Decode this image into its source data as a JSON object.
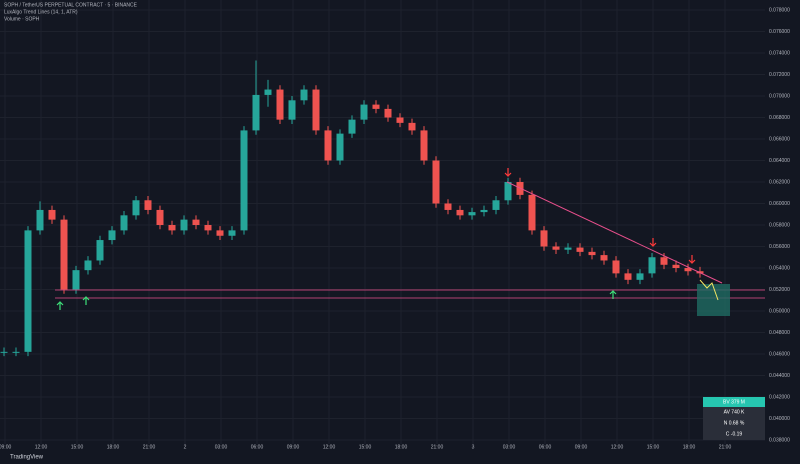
{
  "chart_data": {
    "type": "candlestick",
    "header": [
      "SOPH / TetherUS PERPETUAL CONTRACT · 5 · BINANCE",
      "LuxAlgo Trend Lines (14, 1, ATR)",
      "Volume · SOPH"
    ],
    "ohlc": [
      [
        0.0462,
        0.0466,
        0.0458,
        0.0462
      ],
      [
        0.0462,
        0.0466,
        0.0458,
        0.0462
      ],
      [
        0.0462,
        0.0579,
        0.0458,
        0.0575
      ],
      [
        0.0575,
        0.0602,
        0.0571,
        0.0594
      ],
      [
        0.0594,
        0.0598,
        0.0581,
        0.0585
      ],
      [
        0.0585,
        0.0589,
        0.0516,
        0.052
      ],
      [
        0.052,
        0.0542,
        0.0516,
        0.0538
      ],
      [
        0.0538,
        0.0551,
        0.0534,
        0.0547
      ],
      [
        0.0547,
        0.057,
        0.0543,
        0.0566
      ],
      [
        0.0566,
        0.0579,
        0.0562,
        0.0575
      ],
      [
        0.0575,
        0.0593,
        0.0571,
        0.0589
      ],
      [
        0.0589,
        0.0607,
        0.0585,
        0.0603
      ],
      [
        0.0603,
        0.0607,
        0.059,
        0.0594
      ],
      [
        0.0594,
        0.0598,
        0.0576,
        0.058
      ],
      [
        0.058,
        0.0584,
        0.0571,
        0.0575
      ],
      [
        0.0575,
        0.0589,
        0.0571,
        0.0585
      ],
      [
        0.0585,
        0.0589,
        0.0576,
        0.058
      ],
      [
        0.058,
        0.0584,
        0.0571,
        0.0575
      ],
      [
        0.0575,
        0.0579,
        0.0566,
        0.057
      ],
      [
        0.057,
        0.0579,
        0.0566,
        0.0575
      ],
      [
        0.0575,
        0.0672,
        0.0571,
        0.0668
      ],
      [
        0.0668,
        0.0733,
        0.0664,
        0.0701
      ],
      [
        0.0701,
        0.0715,
        0.069,
        0.0706
      ],
      [
        0.0706,
        0.071,
        0.0674,
        0.0678
      ],
      [
        0.0678,
        0.07,
        0.0674,
        0.0696
      ],
      [
        0.0696,
        0.071,
        0.0692,
        0.0706
      ],
      [
        0.0706,
        0.071,
        0.0664,
        0.0668
      ],
      [
        0.0668,
        0.0672,
        0.0636,
        0.064
      ],
      [
        0.064,
        0.0669,
        0.0636,
        0.0665
      ],
      [
        0.0665,
        0.0682,
        0.0661,
        0.0678
      ],
      [
        0.0678,
        0.0696,
        0.0674,
        0.0692
      ],
      [
        0.0692,
        0.0696,
        0.0684,
        0.0688
      ],
      [
        0.0688,
        0.0692,
        0.0676,
        0.068
      ],
      [
        0.068,
        0.0684,
        0.0671,
        0.0675
      ],
      [
        0.0675,
        0.0679,
        0.0664,
        0.0668
      ],
      [
        0.0668,
        0.0672,
        0.0636,
        0.064
      ],
      [
        0.064,
        0.0644,
        0.0596,
        0.06
      ],
      [
        0.06,
        0.0604,
        0.059,
        0.0594
      ],
      [
        0.0594,
        0.0598,
        0.0585,
        0.0589
      ],
      [
        0.0589,
        0.0596,
        0.0585,
        0.0592
      ],
      [
        0.0592,
        0.0598,
        0.0588,
        0.0594
      ],
      [
        0.0594,
        0.0607,
        0.059,
        0.0603
      ],
      [
        0.0603,
        0.0624,
        0.0599,
        0.062
      ],
      [
        0.062,
        0.0624,
        0.0604,
        0.0608
      ],
      [
        0.0608,
        0.0612,
        0.0571,
        0.0575
      ],
      [
        0.0575,
        0.0579,
        0.0556,
        0.056
      ],
      [
        0.056,
        0.0564,
        0.0553,
        0.0557
      ],
      [
        0.0557,
        0.0563,
        0.0553,
        0.0559
      ],
      [
        0.0559,
        0.0563,
        0.0551,
        0.0555
      ],
      [
        0.0555,
        0.0559,
        0.0548,
        0.0552
      ],
      [
        0.0552,
        0.0556,
        0.0543,
        0.0547
      ],
      [
        0.0547,
        0.0551,
        0.0531,
        0.0535
      ],
      [
        0.0535,
        0.0539,
        0.0525,
        0.0529
      ],
      [
        0.0529,
        0.0539,
        0.0525,
        0.0535
      ],
      [
        0.0535,
        0.0554,
        0.0531,
        0.055
      ],
      [
        0.055,
        0.0554,
        0.0539,
        0.0543
      ],
      [
        0.0543,
        0.0547,
        0.0536,
        0.054
      ],
      [
        0.054,
        0.0544,
        0.0533,
        0.0537
      ],
      [
        0.0537,
        0.0541,
        0.0531,
        0.0535
      ]
    ],
    "up_color": "#26a69a",
    "down_color": "#ef5350",
    "ylim": [
      0.038,
      0.078
    ],
    "yticks": [
      {
        "value": 0.078,
        "label": "0.078000"
      },
      {
        "value": 0.076,
        "label": "0.076000"
      },
      {
        "value": 0.074,
        "label": "0.074000"
      },
      {
        "value": 0.072,
        "label": "0.072000"
      },
      {
        "value": 0.07,
        "label": "0.070000"
      },
      {
        "value": 0.068,
        "label": "0.068000"
      },
      {
        "value": 0.066,
        "label": "0.066000"
      },
      {
        "value": 0.064,
        "label": "0.064000"
      },
      {
        "value": 0.062,
        "label": "0.062000"
      },
      {
        "value": 0.06,
        "label": "0.060000"
      },
      {
        "value": 0.058,
        "label": "0.058000"
      },
      {
        "value": 0.056,
        "label": "0.056000"
      },
      {
        "value": 0.054,
        "label": "0.054000"
      },
      {
        "value": 0.052,
        "label": "0.052000"
      },
      {
        "value": 0.05,
        "label": "0.050000"
      },
      {
        "value": 0.048,
        "label": "0.048000"
      },
      {
        "value": 0.046,
        "label": "0.046000"
      },
      {
        "value": 0.044,
        "label": "0.044000"
      },
      {
        "value": 0.042,
        "label": "0.042000"
      },
      {
        "value": 0.04,
        "label": "0.040000"
      },
      {
        "value": 0.038,
        "label": "0.038000"
      }
    ],
    "xticks": [
      "09:00",
      "12:00",
      "15:00",
      "18:00",
      "21:00",
      "2",
      "03:00",
      "06:00",
      "09:00",
      "12:00",
      "15:00",
      "18:00",
      "21:00",
      "3",
      "03:00",
      "06:00",
      "09:00",
      "12:00",
      "15:00",
      "18:00",
      "21:00"
    ],
    "grid": true,
    "stats": [
      "BV 379 M",
      "AV 740 K",
      "N 0.68 %",
      "C -0.19"
    ],
    "brand": "TradingView"
  }
}
